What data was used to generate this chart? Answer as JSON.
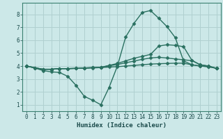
{
  "bg_color": "#cce8e8",
  "grid_color": "#b0d0d0",
  "line_color": "#2a7060",
  "line_width": 1.0,
  "marker": "D",
  "marker_size": 2.5,
  "xlabel": "Humidex (Indice chaleur)",
  "xlim": [
    -0.5,
    23.5
  ],
  "ylim": [
    0.5,
    8.9
  ],
  "xticks": [
    0,
    1,
    2,
    3,
    4,
    5,
    6,
    7,
    8,
    9,
    10,
    11,
    12,
    13,
    14,
    15,
    16,
    17,
    18,
    19,
    20,
    21,
    22,
    23
  ],
  "yticks": [
    1,
    2,
    3,
    4,
    5,
    6,
    7,
    8
  ],
  "series": [
    {
      "x": [
        0,
        1,
        2,
        3,
        4,
        5,
        6,
        7,
        8,
        9,
        10,
        11,
        12,
        13,
        14,
        15,
        16,
        17,
        18,
        19,
        20,
        21,
        22,
        23
      ],
      "y": [
        4.0,
        3.85,
        3.75,
        3.75,
        3.8,
        3.8,
        3.82,
        3.82,
        3.85,
        3.88,
        3.92,
        3.95,
        4.0,
        4.05,
        4.1,
        4.15,
        4.18,
        4.2,
        4.22,
        4.22,
        4.1,
        4.0,
        3.95,
        3.82
      ]
    },
    {
      "x": [
        0,
        1,
        2,
        3,
        4,
        5,
        6,
        7,
        8,
        9,
        10,
        11,
        12,
        13,
        14,
        15,
        16,
        17,
        18,
        19,
        20,
        21,
        22,
        23
      ],
      "y": [
        4.0,
        3.85,
        3.65,
        3.55,
        3.5,
        3.2,
        2.5,
        1.65,
        1.35,
        1.0,
        2.35,
        4.0,
        6.25,
        7.3,
        8.15,
        8.3,
        7.7,
        7.05,
        6.2,
        4.4,
        4.1,
        4.0,
        3.95,
        3.82
      ]
    },
    {
      "x": [
        0,
        2,
        3,
        4,
        5,
        6,
        7,
        8,
        9,
        10,
        11,
        12,
        13,
        14,
        15,
        16,
        17,
        18,
        19,
        20,
        21,
        22,
        23
      ],
      "y": [
        4.0,
        3.75,
        3.75,
        3.8,
        3.8,
        3.82,
        3.85,
        3.88,
        3.9,
        4.05,
        4.2,
        4.4,
        4.6,
        4.75,
        4.9,
        5.55,
        5.65,
        5.6,
        5.5,
        4.45,
        4.1,
        4.0,
        3.82
      ]
    },
    {
      "x": [
        0,
        2,
        3,
        4,
        5,
        6,
        7,
        8,
        9,
        10,
        11,
        12,
        13,
        14,
        15,
        16,
        17,
        18,
        19,
        20,
        21,
        22,
        23
      ],
      "y": [
        4.0,
        3.75,
        3.75,
        3.8,
        3.8,
        3.82,
        3.85,
        3.88,
        3.9,
        4.02,
        4.12,
        4.25,
        4.38,
        4.52,
        4.62,
        4.68,
        4.62,
        4.55,
        4.48,
        4.42,
        4.1,
        4.0,
        3.82
      ]
    }
  ]
}
